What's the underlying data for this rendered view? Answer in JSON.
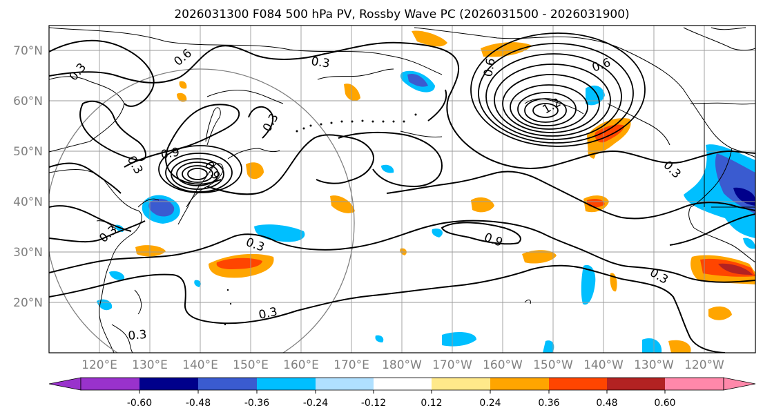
{
  "title": "2026031300 F084 500 hPa PV, Rossby Wave PC (2026031500 - 2026031900)",
  "lat_labels": [
    "70°N",
    "60°N",
    "50°N",
    "40°N",
    "30°N",
    "20°N"
  ],
  "lon_labels": [
    "120°E",
    "130°E",
    "140°E",
    "150°E",
    "160°E",
    "170°E",
    "180°W",
    "170°W",
    "160°W",
    "150°W",
    "140°W",
    "130°W",
    "120°W"
  ],
  "colorbar": {
    "ticks": [
      "-0.60",
      "-0.48",
      "-0.36",
      "-0.24",
      "-0.12",
      "0.12",
      "0.24",
      "0.36",
      "0.48",
      "0.60"
    ],
    "colors": [
      "#9932cc",
      "#00008b",
      "#3a5bd0",
      "#00bfff",
      "#b0e0ff",
      "#ffffff",
      "#ffe98a",
      "#ffa500",
      "#ff4500",
      "#b22222",
      "#ff88aa"
    ]
  },
  "contour_labels": [
    "0.3",
    "0.6",
    "0.3",
    "0.9",
    "0.3",
    "0.9",
    "0.3",
    "0.3",
    "0.6",
    "0.3",
    "0.3",
    "0.9",
    "0.3",
    "0.6",
    "0.3",
    "0.3",
    "1.2"
  ]
}
